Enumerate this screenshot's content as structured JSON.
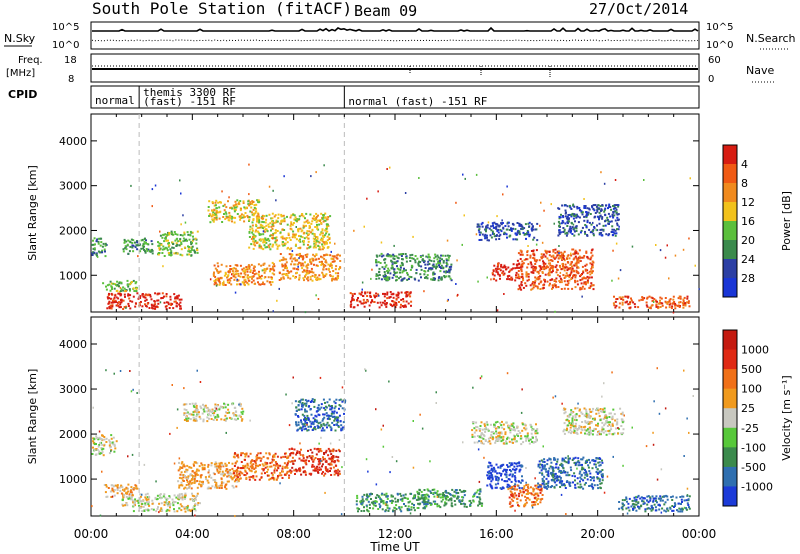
{
  "header": {
    "station": "South Pole Station (fitACF)",
    "beam": "Beam 09",
    "date": "27/Oct/2014"
  },
  "noise_panel": {
    "left_label": "N.Sky",
    "left_ticks": [
      "10^5",
      "10^0"
    ],
    "right_label": "N.Search",
    "right_ticks": [
      "10^5",
      "10^0"
    ]
  },
  "freq_panel": {
    "left_label_top": "Freq.",
    "left_label_bottom": "[MHz]",
    "left_ticks": [
      "18",
      "8"
    ],
    "right_label": "Nave",
    "right_ticks": [
      "60",
      "0"
    ]
  },
  "cpid": {
    "label": "CPID",
    "segments": [
      {
        "start_hour": 0,
        "end_hour": 1.9,
        "line1": "normal",
        "line2": ""
      },
      {
        "start_hour": 1.9,
        "end_hour": 10.0,
        "line1": "themis 3300 RF",
        "line2": "(fast) -151 RF"
      },
      {
        "start_hour": 10.0,
        "end_hour": 24.0,
        "line1": "",
        "line2": "normal (fast) -151 RF"
      }
    ]
  },
  "x_axis": {
    "label": "Time UT",
    "ticks": [
      "00:00",
      "04:00",
      "08:00",
      "12:00",
      "16:00",
      "20:00",
      "00:00"
    ]
  },
  "chart_data": [
    {
      "type": "heatmap",
      "name": "power",
      "xlabel": "Time UT",
      "ylabel": "Slant Range [km]",
      "xlim": [
        0,
        24
      ],
      "ylim": [
        180,
        4600
      ],
      "yticks": [
        "1000",
        "2000",
        "3000",
        "4000"
      ],
      "colorbar": {
        "label": "Power [dB]",
        "tick_labels": [
          "4",
          "8",
          "12",
          "16",
          "20",
          "24",
          "28"
        ],
        "colors": [
          "#1a36d6",
          "#2c3fa4",
          "#3b8a4c",
          "#5bbf3c",
          "#f2c21c",
          "#f08a1e",
          "#f05a14",
          "#d71c12"
        ]
      },
      "echo_regions": [
        {
          "t0": 0.0,
          "t1": 0.6,
          "r0": 1450,
          "r1": 1850,
          "level": 2
        },
        {
          "t0": 0.4,
          "t1": 1.8,
          "r0": 650,
          "r1": 900,
          "level": 3
        },
        {
          "t0": 0.6,
          "t1": 3.6,
          "r0": 260,
          "r1": 620,
          "level": 7
        },
        {
          "t0": 1.2,
          "t1": 2.4,
          "r0": 1500,
          "r1": 1850,
          "level": 2
        },
        {
          "t0": 2.6,
          "t1": 4.2,
          "r0": 1450,
          "r1": 2000,
          "level": 3
        },
        {
          "t0": 4.6,
          "t1": 6.6,
          "r0": 2200,
          "r1": 2700,
          "level": 4
        },
        {
          "t0": 4.8,
          "t1": 7.2,
          "r0": 800,
          "r1": 1300,
          "level": 5
        },
        {
          "t0": 6.2,
          "t1": 9.4,
          "r0": 1600,
          "r1": 2400,
          "level": 4
        },
        {
          "t0": 7.4,
          "t1": 9.8,
          "r0": 900,
          "r1": 1500,
          "level": 5
        },
        {
          "t0": 10.2,
          "t1": 12.6,
          "r0": 300,
          "r1": 650,
          "level": 7
        },
        {
          "t0": 11.2,
          "t1": 14.2,
          "r0": 900,
          "r1": 1500,
          "level": 2
        },
        {
          "t0": 15.8,
          "t1": 17.0,
          "r0": 900,
          "r1": 1300,
          "level": 7
        },
        {
          "t0": 15.2,
          "t1": 17.6,
          "r0": 1800,
          "r1": 2200,
          "level": 1
        },
        {
          "t0": 16.8,
          "t1": 19.8,
          "r0": 700,
          "r1": 1600,
          "level": 6
        },
        {
          "t0": 18.4,
          "t1": 20.8,
          "r0": 1900,
          "r1": 2600,
          "level": 1
        },
        {
          "t0": 20.6,
          "t1": 23.6,
          "r0": 280,
          "r1": 550,
          "level": 6
        }
      ]
    },
    {
      "type": "heatmap",
      "name": "velocity",
      "xlabel": "Time UT",
      "ylabel": "Slant Range [km]",
      "xlim": [
        0,
        24
      ],
      "ylim": [
        180,
        4600
      ],
      "yticks": [
        "1000",
        "2000",
        "3000",
        "4000"
      ],
      "colorbar": {
        "label": "Velocity [m s⁻¹]",
        "tick_labels": [
          "1000",
          "500",
          "100",
          "25",
          "-25",
          "-100",
          "-500",
          "-1000"
        ],
        "colors": [
          "#1c3bd8",
          "#2f6fb0",
          "#3b8a4c",
          "#57c83a",
          "#c8c8c0",
          "#f09a1e",
          "#f07018",
          "#e02a14",
          "#c41a10"
        ]
      },
      "echo_regions": [
        {
          "t0": 0.0,
          "t1": 1.0,
          "r0": 1550,
          "r1": 2000,
          "level": 4
        },
        {
          "t0": 0.5,
          "t1": 1.8,
          "r0": 600,
          "r1": 900,
          "level": 5
        },
        {
          "t0": 1.2,
          "t1": 4.2,
          "r0": 300,
          "r1": 700,
          "level": 4
        },
        {
          "t0": 3.6,
          "t1": 6.0,
          "r0": 2300,
          "r1": 2700,
          "level": 4
        },
        {
          "t0": 3.4,
          "t1": 5.8,
          "r0": 800,
          "r1": 1400,
          "level": 5
        },
        {
          "t0": 5.6,
          "t1": 7.8,
          "r0": 1000,
          "r1": 1600,
          "level": 6
        },
        {
          "t0": 7.8,
          "t1": 9.8,
          "r0": 1100,
          "r1": 1700,
          "level": 7
        },
        {
          "t0": 8.0,
          "t1": 10.0,
          "r0": 2100,
          "r1": 2800,
          "level": 1
        },
        {
          "t0": 10.4,
          "t1": 13.2,
          "r0": 300,
          "r1": 700,
          "level": 2
        },
        {
          "t0": 12.8,
          "t1": 15.4,
          "r0": 400,
          "r1": 800,
          "level": 2
        },
        {
          "t0": 15.0,
          "t1": 17.6,
          "r0": 1800,
          "r1": 2300,
          "level": 4
        },
        {
          "t0": 15.6,
          "t1": 17.0,
          "r0": 800,
          "r1": 1400,
          "level": 0
        },
        {
          "t0": 16.4,
          "t1": 17.8,
          "r0": 400,
          "r1": 900,
          "level": 6
        },
        {
          "t0": 17.6,
          "t1": 20.2,
          "r0": 800,
          "r1": 1500,
          "level": 1
        },
        {
          "t0": 18.6,
          "t1": 21.0,
          "r0": 2000,
          "r1": 2600,
          "level": 4
        },
        {
          "t0": 20.8,
          "t1": 23.6,
          "r0": 300,
          "r1": 650,
          "level": 1
        }
      ]
    }
  ]
}
